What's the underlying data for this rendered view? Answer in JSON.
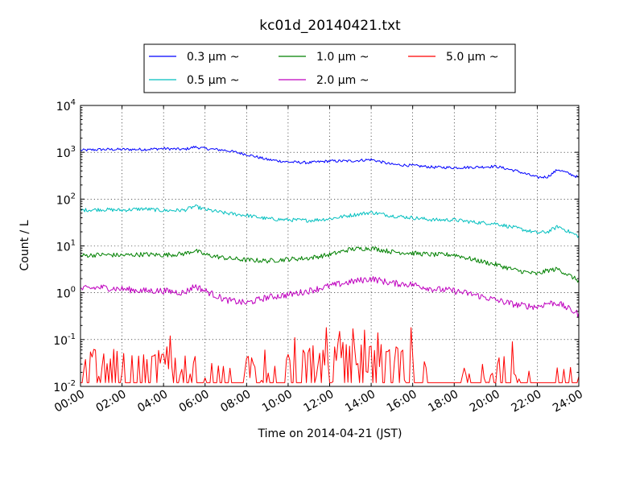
{
  "chart_data": {
    "type": "line",
    "title": "kc01d_20140421.txt",
    "xlabel": "Time on 2014-04-21 (JST)",
    "ylabel": "Count / L",
    "xlim": [
      0,
      24
    ],
    "ylim": [
      0.01,
      10000
    ],
    "yscale": "log",
    "grid": true,
    "legend_position": "top, above plot, 3 columns",
    "x_ticks": [
      "00:00",
      "02:00",
      "04:00",
      "06:00",
      "08:00",
      "10:00",
      "12:00",
      "14:00",
      "16:00",
      "18:00",
      "20:00",
      "22:00",
      "24:00"
    ],
    "y_ticks": [
      {
        "base": "10",
        "exp": "-2",
        "value": 0.01
      },
      {
        "base": "10",
        "exp": "-1",
        "value": 0.1
      },
      {
        "base": "10",
        "exp": "0",
        "value": 1
      },
      {
        "base": "10",
        "exp": "1",
        "value": 10
      },
      {
        "base": "10",
        "exp": "2",
        "value": 100
      },
      {
        "base": "10",
        "exp": "3",
        "value": 1000
      },
      {
        "base": "10",
        "exp": "4",
        "value": 10000
      }
    ],
    "x_hours": [
      0,
      1,
      2,
      3,
      4,
      5,
      5.5,
      6,
      7,
      8,
      9,
      10,
      11,
      12,
      13,
      14,
      15,
      16,
      17,
      18,
      19,
      20,
      21,
      22,
      22.5,
      23,
      24
    ],
    "series": [
      {
        "name": "0.3 μm ~",
        "color": "#0000ff",
        "noise": 0.03,
        "values": [
          1100,
          1150,
          1150,
          1150,
          1200,
          1150,
          1300,
          1200,
          1100,
          900,
          700,
          620,
          600,
          650,
          650,
          700,
          550,
          520,
          480,
          470,
          480,
          500,
          400,
          290,
          300,
          430,
          290
        ]
      },
      {
        "name": "0.5 μm ~",
        "color": "#00bfbf",
        "noise": 0.04,
        "values": [
          58,
          60,
          58,
          62,
          57,
          58,
          70,
          60,
          50,
          45,
          38,
          36,
          35,
          38,
          45,
          52,
          44,
          40,
          36,
          36,
          32,
          30,
          24,
          19,
          20,
          26,
          16
        ]
      },
      {
        "name": "1.0 μm ~",
        "color": "#008000",
        "noise": 0.05,
        "values": [
          6.2,
          6.5,
          6.3,
          6.6,
          6.4,
          6.8,
          8.0,
          6.5,
          5.5,
          5.0,
          4.8,
          5.2,
          5.5,
          6.5,
          8.5,
          9.0,
          7.5,
          7.0,
          6.5,
          6.5,
          5.0,
          4.0,
          3.0,
          2.5,
          3.0,
          3.2,
          1.8
        ]
      },
      {
        "name": "2.0 μm ~",
        "color": "#bf00bf",
        "noise": 0.07,
        "values": [
          1.2,
          1.3,
          1.2,
          1.1,
          1.1,
          1.0,
          1.4,
          1.1,
          0.7,
          0.6,
          0.8,
          0.9,
          1.1,
          1.4,
          1.7,
          2.0,
          1.6,
          1.5,
          1.2,
          1.1,
          0.9,
          0.7,
          0.55,
          0.5,
          0.6,
          0.6,
          0.35
        ]
      },
      {
        "name": "5.0 μm ~",
        "color": "#ff0000",
        "noise": 0,
        "values": [
          0.04,
          0.04,
          0.04,
          0.03,
          0.05,
          0.03,
          0.03,
          0.02,
          0.01,
          0.03,
          0.02,
          0.03,
          0.06,
          0.05,
          0.06,
          0.05,
          0.05,
          0.03,
          0.01,
          0.01,
          0.01,
          0.02,
          0.03,
          0.01,
          0.01,
          0.01,
          0.01
        ]
      }
    ],
    "red_spikes": [
      {
        "x": 4.35,
        "y": 0.12
      },
      {
        "x": 10.35,
        "y": 0.11
      },
      {
        "x": 11.8,
        "y": 0.18
      },
      {
        "x": 12.5,
        "y": 0.15
      },
      {
        "x": 13.1,
        "y": 0.17
      },
      {
        "x": 13.7,
        "y": 0.16
      },
      {
        "x": 14.3,
        "y": 0.14
      },
      {
        "x": 15.9,
        "y": 0.18
      },
      {
        "x": 20.8,
        "y": 0.09
      },
      {
        "x": 8.9,
        "y": 0.06
      },
      {
        "x": 12.2,
        "y": 0.07
      },
      {
        "x": 15.2,
        "y": 0.07
      }
    ]
  }
}
